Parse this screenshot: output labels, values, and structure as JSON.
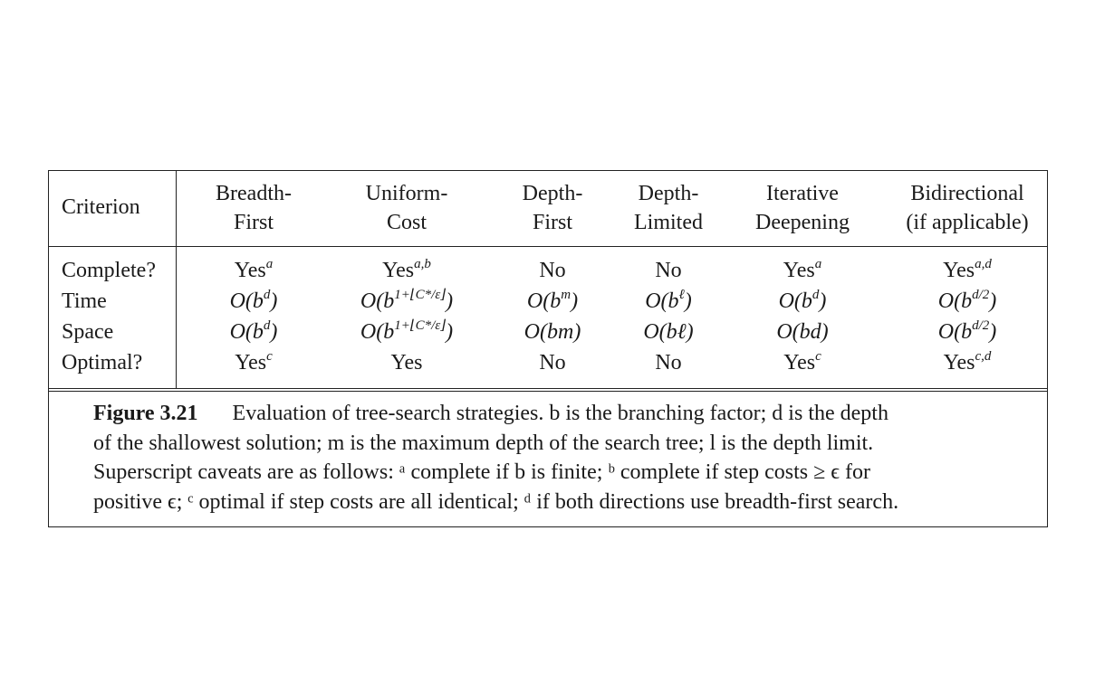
{
  "table": {
    "criterion_header": "Criterion",
    "columns": [
      {
        "line1": "Breadth-",
        "line2": "First"
      },
      {
        "line1": "Uniform-",
        "line2": "Cost"
      },
      {
        "line1": "Depth-",
        "line2": "First"
      },
      {
        "line1": "Depth-",
        "line2": "Limited"
      },
      {
        "line1": "Iterative",
        "line2": "Deepening"
      },
      {
        "line1": "Bidirectional",
        "line2": "(if applicable)"
      }
    ],
    "rows": [
      {
        "label": "Complete?",
        "cells": [
          {
            "base": "Yes",
            "sup": "a"
          },
          {
            "base": "Yes",
            "sup": "a,b"
          },
          {
            "base": "No",
            "sup": ""
          },
          {
            "base": "No",
            "sup": ""
          },
          {
            "base": "Yes",
            "sup": "a"
          },
          {
            "base": "Yes",
            "sup": "a,d"
          }
        ]
      },
      {
        "label": "Time",
        "cells": [
          {
            "base": "O(b",
            "sup": "d",
            "tail": ")"
          },
          {
            "base": "O(b",
            "sup": "1+⌊C*/ε⌋",
            "tail": ")"
          },
          {
            "base": "O(b",
            "sup": "m",
            "tail": ")"
          },
          {
            "base": "O(b",
            "sup": "ℓ",
            "tail": ")"
          },
          {
            "base": "O(b",
            "sup": "d",
            "tail": ")"
          },
          {
            "base": "O(b",
            "sup": "d/2",
            "tail": ")"
          }
        ]
      },
      {
        "label": "Space",
        "cells": [
          {
            "base": "O(b",
            "sup": "d",
            "tail": ")"
          },
          {
            "base": "O(b",
            "sup": "1+⌊C*/ε⌋",
            "tail": ")"
          },
          {
            "base": "O(bm)",
            "sup": "",
            "tail": ""
          },
          {
            "base": "O(bℓ)",
            "sup": "",
            "tail": ""
          },
          {
            "base": "O(bd)",
            "sup": "",
            "tail": ""
          },
          {
            "base": "O(b",
            "sup": "d/2",
            "tail": ")"
          }
        ]
      },
      {
        "label": "Optimal?",
        "cells": [
          {
            "base": "Yes",
            "sup": "c"
          },
          {
            "base": "Yes",
            "sup": ""
          },
          {
            "base": "No",
            "sup": ""
          },
          {
            "base": "No",
            "sup": ""
          },
          {
            "base": "Yes",
            "sup": "c"
          },
          {
            "base": "Yes",
            "sup": "c,d"
          }
        ]
      }
    ]
  },
  "caption": {
    "label": "Figure 3.21",
    "lines": [
      "Evaluation of tree-search strategies. b is the branching factor; d is the depth",
      "of the shallowest solution; m is the maximum depth of the search tree; l is the depth limit.",
      "Superscript caveats are as follows: ᵃ complete if b is finite; ᵇ complete if step costs ≥ ϵ for",
      "positive ϵ; ᶜ optimal if step costs are all identical; ᵈ if both directions use breadth-first search."
    ]
  }
}
